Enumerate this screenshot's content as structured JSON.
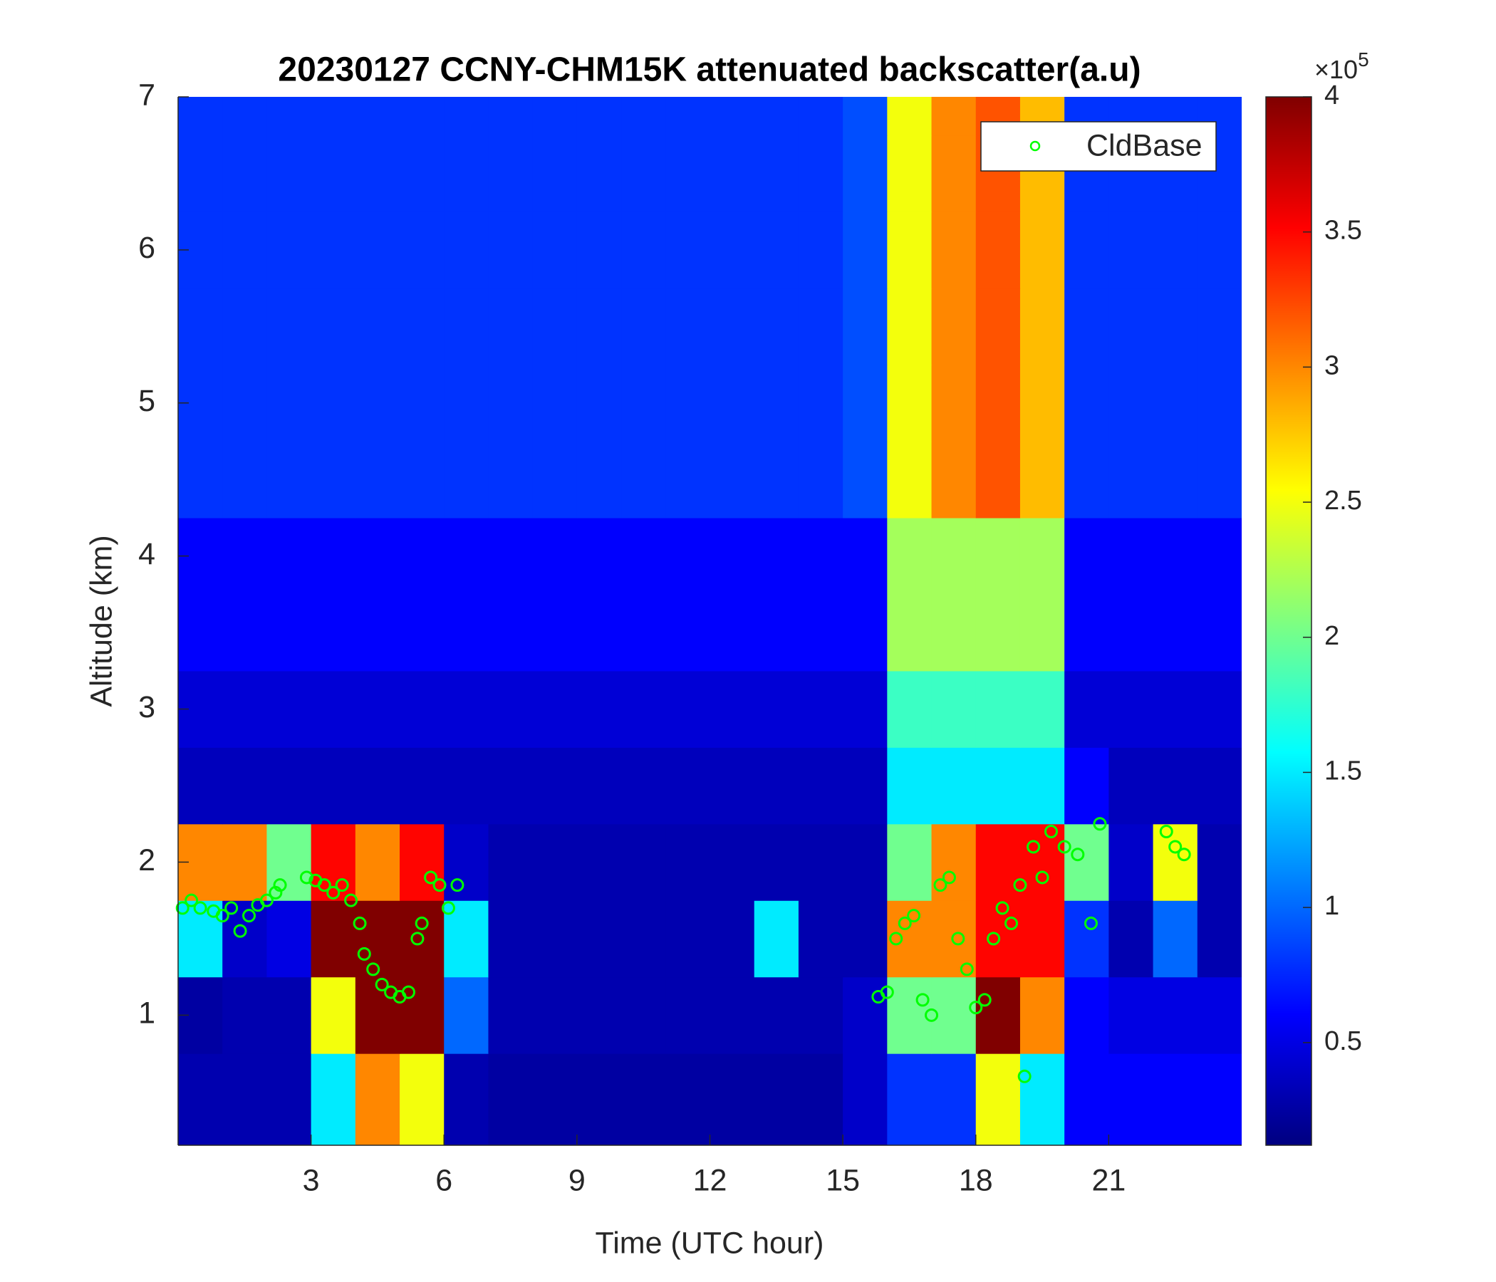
{
  "chart_data": {
    "type": "heatmap",
    "title": "20230127 CCNY-CHM15K attenuated backscatter(a.u)",
    "x_label": "Time (UTC hour)",
    "y_label": "Altitude (km)",
    "xlim": [
      0,
      24
    ],
    "ylim": [
      0.15,
      7
    ],
    "xticks": [
      3,
      6,
      9,
      12,
      15,
      18,
      21
    ],
    "yticks": [
      1,
      2,
      3,
      4,
      5,
      6,
      7
    ],
    "colormap": "jet",
    "clim": [
      0.12,
      4
    ],
    "cticks": [
      0.5,
      1,
      1.5,
      2,
      2.5,
      3,
      3.5,
      4
    ],
    "c_multiplier": "×10",
    "c_exponent": "5",
    "x": [
      0.5,
      1.5,
      2.5,
      3.5,
      4.5,
      5.5,
      6.5,
      7.5,
      8.5,
      9.5,
      10.5,
      11.5,
      12.5,
      13.5,
      14.5,
      15.5,
      16.5,
      17.5,
      18.5,
      19.5,
      20.5,
      21.5,
      22.5,
      23.5
    ],
    "y": [
      0.5,
      1,
      1.5,
      2,
      2.5,
      3,
      3.5,
      4,
      4.5,
      5,
      5.5,
      6,
      6.5,
      7
    ],
    "z": [
      [
        0.3,
        0.3,
        0.3,
        1.5,
        3,
        2.5,
        0.3,
        0.25,
        0.25,
        0.25,
        0.25,
        0.25,
        0.25,
        0.25,
        0.25,
        0.4,
        0.8,
        0.8,
        2.5,
        1.5,
        0.6,
        0.6,
        0.6,
        0.6
      ],
      [
        0.25,
        0.3,
        0.3,
        2.5,
        4,
        4,
        1,
        0.3,
        0.3,
        0.3,
        0.3,
        0.3,
        0.3,
        0.3,
        0.3,
        0.4,
        2,
        2,
        4,
        3,
        0.6,
        0.5,
        0.5,
        0.5
      ],
      [
        1.5,
        0.4,
        0.5,
        4,
        4,
        4,
        1.5,
        0.3,
        0.3,
        0.3,
        0.3,
        0.3,
        0.3,
        1.5,
        0.3,
        0.3,
        3,
        3,
        3.5,
        3.5,
        0.8,
        0.3,
        1,
        0.3
      ],
      [
        3,
        3,
        2,
        3.5,
        3,
        3.5,
        0.4,
        0.3,
        0.3,
        0.3,
        0.3,
        0.3,
        0.3,
        0.3,
        0.3,
        0.3,
        2,
        3,
        3.5,
        3.5,
        2,
        0.4,
        2.5,
        0.3
      ],
      [
        0.35,
        0.35,
        0.35,
        0.35,
        0.35,
        0.35,
        0.35,
        0.35,
        0.35,
        0.35,
        0.35,
        0.35,
        0.35,
        0.35,
        0.35,
        0.35,
        1.5,
        1.5,
        1.5,
        1.5,
        0.6,
        0.35,
        0.35,
        0.35
      ],
      [
        0.45,
        0.45,
        0.45,
        0.45,
        0.45,
        0.45,
        0.45,
        0.45,
        0.45,
        0.45,
        0.45,
        0.45,
        0.45,
        0.45,
        0.45,
        0.45,
        1.8,
        1.8,
        1.8,
        1.8,
        0.45,
        0.45,
        0.45,
        0.45
      ],
      [
        0.6,
        0.6,
        0.6,
        0.6,
        0.6,
        0.6,
        0.6,
        0.6,
        0.6,
        0.6,
        0.6,
        0.6,
        0.6,
        0.6,
        0.6,
        0.6,
        2.2,
        2.2,
        2.2,
        2.2,
        0.6,
        0.6,
        0.6,
        0.6
      ],
      [
        0.6,
        0.6,
        0.6,
        0.6,
        0.6,
        0.6,
        0.6,
        0.6,
        0.6,
        0.6,
        0.6,
        0.6,
        0.6,
        0.6,
        0.6,
        0.6,
        2.2,
        2.2,
        2.2,
        2.2,
        0.6,
        0.6,
        0.6,
        0.6
      ],
      [
        0.8,
        0.8,
        0.8,
        0.8,
        0.8,
        0.8,
        0.8,
        0.8,
        0.8,
        0.8,
        0.8,
        0.8,
        0.8,
        0.8,
        0.8,
        0.9,
        2.5,
        3,
        3.2,
        2.8,
        0.8,
        0.8,
        0.8,
        0.8
      ],
      [
        0.8,
        0.8,
        0.8,
        0.8,
        0.8,
        0.8,
        0.8,
        0.8,
        0.8,
        0.8,
        0.8,
        0.8,
        0.8,
        0.8,
        0.8,
        0.9,
        2.5,
        3,
        3.2,
        2.8,
        0.8,
        0.8,
        0.8,
        0.8
      ],
      [
        0.8,
        0.8,
        0.8,
        0.8,
        0.8,
        0.8,
        0.8,
        0.8,
        0.8,
        0.8,
        0.8,
        0.8,
        0.8,
        0.8,
        0.8,
        0.9,
        2.5,
        3,
        3.2,
        2.8,
        0.8,
        0.8,
        0.8,
        0.8
      ],
      [
        0.8,
        0.8,
        0.8,
        0.8,
        0.8,
        0.8,
        0.8,
        0.8,
        0.8,
        0.8,
        0.8,
        0.8,
        0.8,
        0.8,
        0.8,
        0.9,
        2.5,
        3,
        3.2,
        2.8,
        0.8,
        0.8,
        0.8,
        0.8
      ],
      [
        0.8,
        0.8,
        0.8,
        0.8,
        0.8,
        0.8,
        0.8,
        0.8,
        0.8,
        0.8,
        0.8,
        0.8,
        0.8,
        0.8,
        0.8,
        0.9,
        2.5,
        3,
        3.2,
        2.8,
        0.8,
        0.8,
        0.8,
        0.8
      ],
      [
        0.8,
        0.8,
        0.8,
        0.8,
        0.8,
        0.8,
        0.8,
        0.8,
        0.8,
        0.8,
        0.8,
        0.8,
        0.8,
        0.8,
        0.8,
        0.9,
        2.5,
        3,
        3.2,
        2.8,
        0.8,
        0.8,
        0.8,
        0.8
      ]
    ],
    "series": [
      {
        "name": "CldBase",
        "color": "#00ff00",
        "x": [
          0.1,
          0.3,
          0.5,
          0.8,
          1.0,
          1.2,
          1.4,
          1.6,
          1.8,
          2.0,
          2.2,
          2.3,
          2.9,
          3.1,
          3.3,
          3.5,
          3.7,
          3.9,
          4.1,
          4.2,
          4.4,
          4.6,
          4.8,
          5.0,
          5.2,
          5.4,
          5.5,
          5.7,
          5.9,
          6.1,
          6.3,
          15.8,
          16.0,
          16.2,
          16.4,
          16.6,
          16.8,
          17.0,
          17.2,
          17.4,
          17.6,
          17.8,
          18.0,
          18.2,
          18.4,
          18.6,
          18.8,
          19.0,
          19.1,
          19.3,
          19.5,
          19.7,
          20.0,
          20.3,
          20.6,
          20.8,
          22.3,
          22.5,
          22.7
        ],
        "values": [
          1.7,
          1.75,
          1.7,
          1.68,
          1.65,
          1.7,
          1.55,
          1.65,
          1.72,
          1.75,
          1.8,
          1.85,
          1.9,
          1.88,
          1.85,
          1.8,
          1.85,
          1.75,
          1.6,
          1.4,
          1.3,
          1.2,
          1.15,
          1.12,
          1.15,
          1.5,
          1.6,
          1.9,
          1.85,
          1.7,
          1.85,
          1.12,
          1.15,
          1.5,
          1.6,
          1.65,
          1.1,
          1.0,
          1.85,
          1.9,
          1.5,
          1.3,
          1.05,
          1.1,
          1.5,
          1.7,
          1.6,
          1.85,
          0.6,
          2.1,
          1.9,
          2.2,
          2.1,
          2.05,
          1.6,
          2.25,
          2.2,
          2.1,
          2.05
        ]
      }
    ],
    "legend": "upper right"
  }
}
